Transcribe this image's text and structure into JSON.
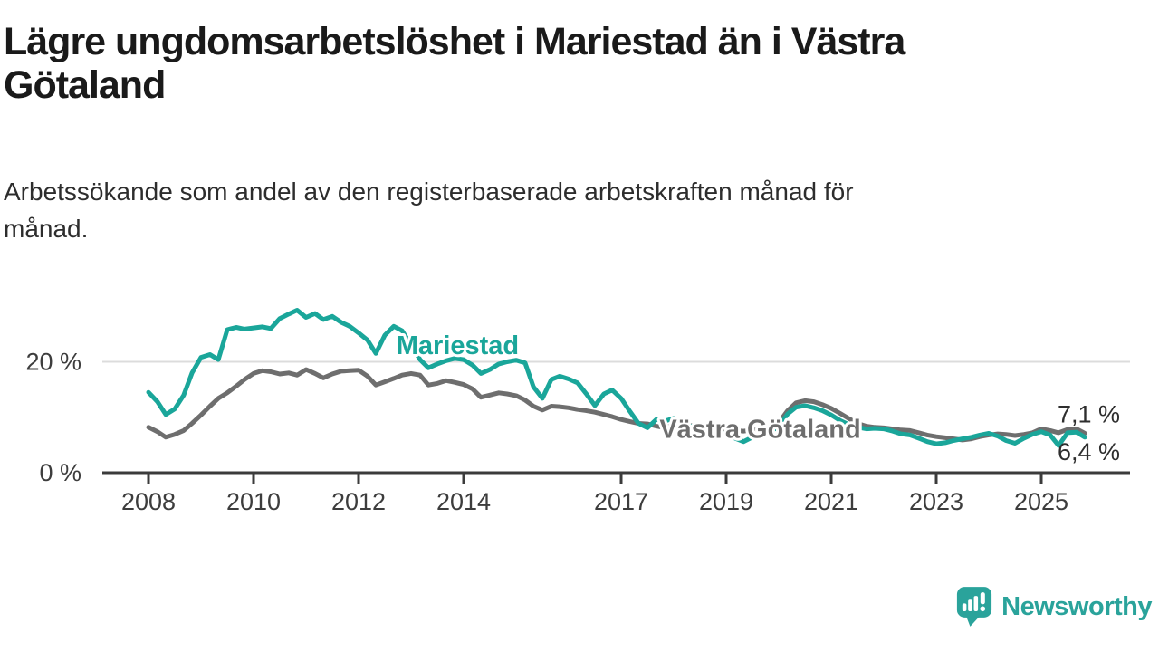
{
  "header": {
    "title": "Lägre ungdomsarbetslöshet i Mariestad än i Västra\nGötaland",
    "subtitle": "Arbetssökande som andel av den registerbaserade arbetskraften månad för\nmånad."
  },
  "branding": {
    "logo_icon": "newsworthy-speech-bubble-bar-chart-icon",
    "logo_text": "Newsworthy",
    "logo_color": "#2aa39b"
  },
  "colors": {
    "mariestad_line": "#1aa69a",
    "vastra_gotaland_line": "#6e6e6e",
    "axis": "#3b3b3b",
    "gridline": "#dcdcdc",
    "tick_label": "#3d3d3d",
    "title_text": "#1a1a1a",
    "subtitle_text": "#2d2d2d"
  },
  "chart_data": {
    "type": "line",
    "unit": "%",
    "title": "Lägre ungdomsarbetslöshet i Mariestad än i Västra Götaland",
    "xlabel": "",
    "ylabel": "",
    "ylim": [
      0,
      32
    ],
    "xlim": [
      2007.9,
      2026.4
    ],
    "grid": "horizontal-only",
    "legend_position": "inline-labels",
    "x_ticks": [
      2008,
      2010,
      2012,
      2014,
      2017,
      2019,
      2021,
      2023,
      2025
    ],
    "x_tick_labels": [
      "2008",
      "2010",
      "2012",
      "2014",
      "2017",
      "2019",
      "2021",
      "2023",
      "2025"
    ],
    "y_ticks": [
      {
        "value": 0,
        "label": "0 %"
      },
      {
        "value": 20,
        "label": "20 %"
      }
    ],
    "gridlines": [
      20
    ],
    "x": [
      2008,
      2008.17,
      2008.33,
      2008.5,
      2008.67,
      2008.83,
      2009,
      2009.17,
      2009.33,
      2009.5,
      2009.67,
      2009.83,
      2010,
      2010.17,
      2010.33,
      2010.5,
      2010.67,
      2010.83,
      2011,
      2011.17,
      2011.33,
      2011.5,
      2011.67,
      2011.83,
      2012,
      2012.17,
      2012.33,
      2012.5,
      2012.67,
      2012.83,
      2013,
      2013.17,
      2013.33,
      2013.5,
      2013.67,
      2013.83,
      2014,
      2014.17,
      2014.33,
      2014.5,
      2014.67,
      2014.83,
      2015,
      2015.17,
      2015.33,
      2015.5,
      2015.67,
      2015.83,
      2016,
      2016.17,
      2016.33,
      2016.5,
      2016.67,
      2016.83,
      2017,
      2017.17,
      2017.33,
      2017.5,
      2017.67,
      2017.83,
      2018,
      2018.17,
      2018.33,
      2018.5,
      2018.67,
      2018.83,
      2019,
      2019.17,
      2019.33,
      2019.5,
      2019.67,
      2019.83,
      2020,
      2020.17,
      2020.33,
      2020.5,
      2020.67,
      2020.83,
      2021,
      2021.17,
      2021.33,
      2021.5,
      2021.67,
      2021.83,
      2022,
      2022.17,
      2022.33,
      2022.5,
      2022.67,
      2022.83,
      2023,
      2023.17,
      2023.33,
      2023.5,
      2023.67,
      2023.83,
      2024,
      2024.17,
      2024.33,
      2024.5,
      2024.67,
      2024.83,
      2025,
      2025.17,
      2025.33,
      2025.5,
      2025.67,
      2025.83
    ],
    "series": [
      {
        "name": "Västra Götaland",
        "color": "#6e6e6e",
        "values": [
          8.2,
          7.4,
          6.4,
          6.9,
          7.6,
          8.9,
          10.4,
          12.0,
          13.4,
          14.4,
          15.6,
          16.8,
          17.9,
          18.4,
          18.2,
          17.8,
          18.0,
          17.6,
          18.6,
          17.9,
          17.1,
          17.8,
          18.3,
          18.4,
          18.5,
          17.4,
          15.8,
          16.4,
          17.0,
          17.6,
          17.9,
          17.6,
          15.8,
          16.1,
          16.6,
          16.3,
          15.9,
          15.1,
          13.6,
          14.0,
          14.4,
          14.2,
          13.9,
          13.1,
          12.0,
          11.3,
          12.0,
          11.9,
          11.7,
          11.4,
          11.2,
          10.9,
          10.5,
          10.1,
          9.6,
          9.2,
          8.9,
          8.8,
          8.4,
          8.1,
          8.6,
          8.8,
          8.5,
          8.2,
          8.0,
          7.9,
          7.8,
          7.6,
          7.5,
          7.7,
          7.9,
          8.3,
          9.0,
          11.2,
          12.6,
          13.0,
          12.8,
          12.3,
          11.6,
          10.7,
          9.8,
          8.9,
          8.4,
          8.2,
          8.1,
          7.9,
          7.7,
          7.6,
          7.2,
          6.8,
          6.5,
          6.3,
          6.1,
          5.9,
          6.1,
          6.5,
          6.8,
          7.0,
          6.9,
          6.7,
          6.9,
          7.2,
          7.9,
          7.6,
          7.2,
          7.8,
          7.9,
          7.1
        ]
      },
      {
        "name": "Mariestad",
        "color": "#1aa69a",
        "values": [
          14.5,
          12.8,
          10.5,
          11.5,
          14.0,
          18.0,
          20.8,
          21.3,
          20.4,
          25.8,
          26.2,
          25.9,
          26.1,
          26.3,
          26.0,
          27.8,
          28.6,
          29.3,
          28.0,
          28.7,
          27.6,
          28.2,
          27.1,
          26.4,
          25.2,
          23.9,
          21.5,
          24.8,
          26.4,
          25.6,
          23.0,
          20.4,
          18.9,
          19.6,
          20.2,
          20.6,
          20.4,
          19.4,
          17.9,
          18.6,
          19.6,
          20.0,
          20.3,
          19.8,
          15.5,
          13.4,
          16.8,
          17.4,
          16.9,
          16.2,
          14.3,
          12.1,
          14.2,
          14.9,
          13.4,
          11.0,
          8.9,
          8.1,
          9.6,
          9.3,
          9.8,
          9.0,
          8.4,
          8.0,
          7.7,
          7.3,
          7.0,
          6.2,
          5.6,
          6.4,
          6.9,
          7.4,
          8.3,
          10.6,
          11.8,
          12.1,
          11.7,
          11.2,
          10.4,
          9.4,
          8.7,
          8.2,
          7.9,
          8.0,
          7.9,
          7.5,
          7.0,
          6.8,
          6.2,
          5.6,
          5.2,
          5.4,
          5.8,
          6.1,
          6.4,
          6.8,
          7.1,
          6.6,
          5.8,
          5.3,
          6.2,
          6.9,
          7.4,
          6.8,
          4.9,
          7.2,
          7.3,
          6.4
        ]
      }
    ],
    "annotations": [
      {
        "text": "Mariestad",
        "x": 2012.72,
        "y": 21.4,
        "color": "#1aa69a",
        "bold": true,
        "size": 29,
        "halo": true,
        "name": "series-label-mariestad"
      },
      {
        "text": "Västra Götaland",
        "x": 2017.73,
        "y": 6.3,
        "color": "#6e6e6e",
        "bold": true,
        "size": 29,
        "halo": true,
        "name": "series-label-vastra-gotaland"
      },
      {
        "text": "7,1 %",
        "x": 2025.31,
        "y": 9.1,
        "color": "#2e2e2e",
        "bold": false,
        "size": 27,
        "halo": false,
        "name": "end-value-label-vastra-gotaland"
      },
      {
        "text": "6,4 %",
        "x": 2025.31,
        "y": 2.3,
        "color": "#2e2e2e",
        "bold": false,
        "size": 27,
        "halo": false,
        "name": "end-value-label-mariestad"
      }
    ],
    "end_values": {
      "vastra_gotaland": "7,1 %",
      "mariestad": "6,4 %"
    }
  }
}
